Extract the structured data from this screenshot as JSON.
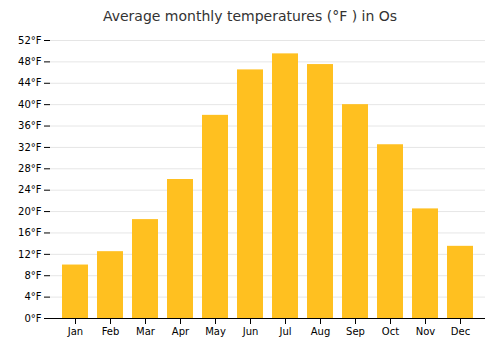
{
  "chart_data": {
    "type": "bar",
    "title": "Average monthly temperatures (°F ) in Os",
    "categories": [
      "Jan",
      "Feb",
      "Mar",
      "Apr",
      "May",
      "Jun",
      "Jul",
      "Aug",
      "Sep",
      "Oct",
      "Nov",
      "Dec"
    ],
    "values": [
      10,
      12.5,
      18.5,
      26,
      38,
      46.5,
      49.5,
      47.5,
      40,
      32.5,
      20.5,
      13.5
    ],
    "color": "#FFC020",
    "ylim": [
      0,
      52
    ],
    "yticks": [
      {
        "value": 0,
        "label": "0°F"
      },
      {
        "value": 4,
        "label": "4°F"
      },
      {
        "value": 8,
        "label": "8°F"
      },
      {
        "value": 12,
        "label": "12°F"
      },
      {
        "value": 16,
        "label": "16°F"
      },
      {
        "value": 20,
        "label": "20°F"
      },
      {
        "value": 24,
        "label": "24°F"
      },
      {
        "value": 28,
        "label": "28°F"
      },
      {
        "value": 32,
        "label": "32°F"
      },
      {
        "value": 36,
        "label": "36°F"
      },
      {
        "value": 40,
        "label": "40°F"
      },
      {
        "value": 44,
        "label": "44°F"
      },
      {
        "value": 48,
        "label": "48°F"
      },
      {
        "value": 52,
        "label": "52°F"
      }
    ],
    "grid": true
  }
}
